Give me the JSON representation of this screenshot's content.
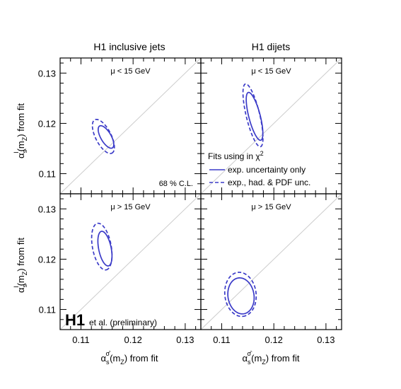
{
  "figure": {
    "column_titles": [
      "H1 inclusive jets",
      "H1 dijets"
    ],
    "xlabel": "α_s^σ̂(m_Z) from fit",
    "ylabel": "α_s^I(m_Z) from fit",
    "legend_title": "Fits using in χ²",
    "legend_solid": "exp. uncertainty only",
    "legend_dashed": "exp., had. & PDF unc.",
    "cl_label": "68 % C.L.",
    "brand": {
      "main": "H1",
      "rest": "et al. (preliminary)"
    },
    "ellipse_color": "#3b3bc8",
    "diagonal_color": "#cccccc"
  },
  "chart_data": [
    {
      "type": "scatter",
      "panel": "top-left",
      "title": "H1 inclusive jets",
      "annotation": "μ < 15 GeV",
      "xlim": [
        0.106,
        0.133
      ],
      "ylim": [
        0.106,
        0.133
      ],
      "xticks": [
        0.11,
        0.12,
        0.13
      ],
      "yticks": [
        0.11,
        0.12,
        0.13
      ],
      "series": [
        {
          "name": "exp. uncertainty only",
          "style": "solid",
          "center": [
            0.1148,
            0.1173
          ],
          "semi_axes": [
            0.0025,
            0.001
          ],
          "angle_deg": -61
        },
        {
          "name": "exp., had. & PDF unc.",
          "style": "dashed",
          "center": [
            0.1143,
            0.1174
          ],
          "semi_axes": [
            0.0037,
            0.0015
          ],
          "angle_deg": -64
        }
      ]
    },
    {
      "type": "scatter",
      "panel": "top-right",
      "title": "H1 dijets",
      "annotation": "μ < 15 GeV",
      "xlim": [
        0.106,
        0.133
      ],
      "ylim": [
        0.106,
        0.133
      ],
      "xticks": [
        0.11,
        0.12,
        0.13
      ],
      "yticks": [
        0.11,
        0.12,
        0.13
      ],
      "series": [
        {
          "name": "exp. uncertainty only",
          "style": "solid",
          "center": [
            0.1163,
            0.1214
          ],
          "semi_axes": [
            0.0049,
            0.0011
          ],
          "angle_deg": -76
        },
        {
          "name": "exp., had. & PDF unc.",
          "style": "dashed",
          "center": [
            0.116,
            0.1216
          ],
          "semi_axes": [
            0.0064,
            0.0013
          ],
          "angle_deg": -77
        }
      ]
    },
    {
      "type": "scatter",
      "panel": "bottom-left",
      "annotation": "μ > 15 GeV",
      "xlim": [
        0.106,
        0.133
      ],
      "ylim": [
        0.106,
        0.133
      ],
      "xticks": [
        0.11,
        0.12,
        0.13
      ],
      "yticks": [
        0.11,
        0.12,
        0.13
      ],
      "series": [
        {
          "name": "exp. uncertainty only",
          "style": "solid",
          "center": [
            0.1146,
            0.1221
          ],
          "semi_axes": [
            0.0035,
            0.0012
          ],
          "angle_deg": -79
        },
        {
          "name": "exp., had. & PDF unc.",
          "style": "dashed",
          "center": [
            0.114,
            0.1225
          ],
          "semi_axes": [
            0.0047,
            0.0018
          ],
          "angle_deg": -80
        }
      ]
    },
    {
      "type": "scatter",
      "panel": "bottom-right",
      "annotation": "μ > 15 GeV",
      "xlim": [
        0.106,
        0.133
      ],
      "ylim": [
        0.106,
        0.133
      ],
      "xticks": [
        0.11,
        0.12,
        0.13
      ],
      "yticks": [
        0.11,
        0.12,
        0.13
      ],
      "series": [
        {
          "name": "exp. uncertainty only",
          "style": "solid",
          "center": [
            0.1137,
            0.1127
          ],
          "semi_axes": [
            0.0036,
            0.0025
          ],
          "angle_deg": -82
        },
        {
          "name": "exp., had. & PDF unc.",
          "style": "dashed",
          "center": [
            0.1136,
            0.113
          ],
          "semi_axes": [
            0.0044,
            0.003
          ],
          "angle_deg": -84
        }
      ]
    }
  ]
}
